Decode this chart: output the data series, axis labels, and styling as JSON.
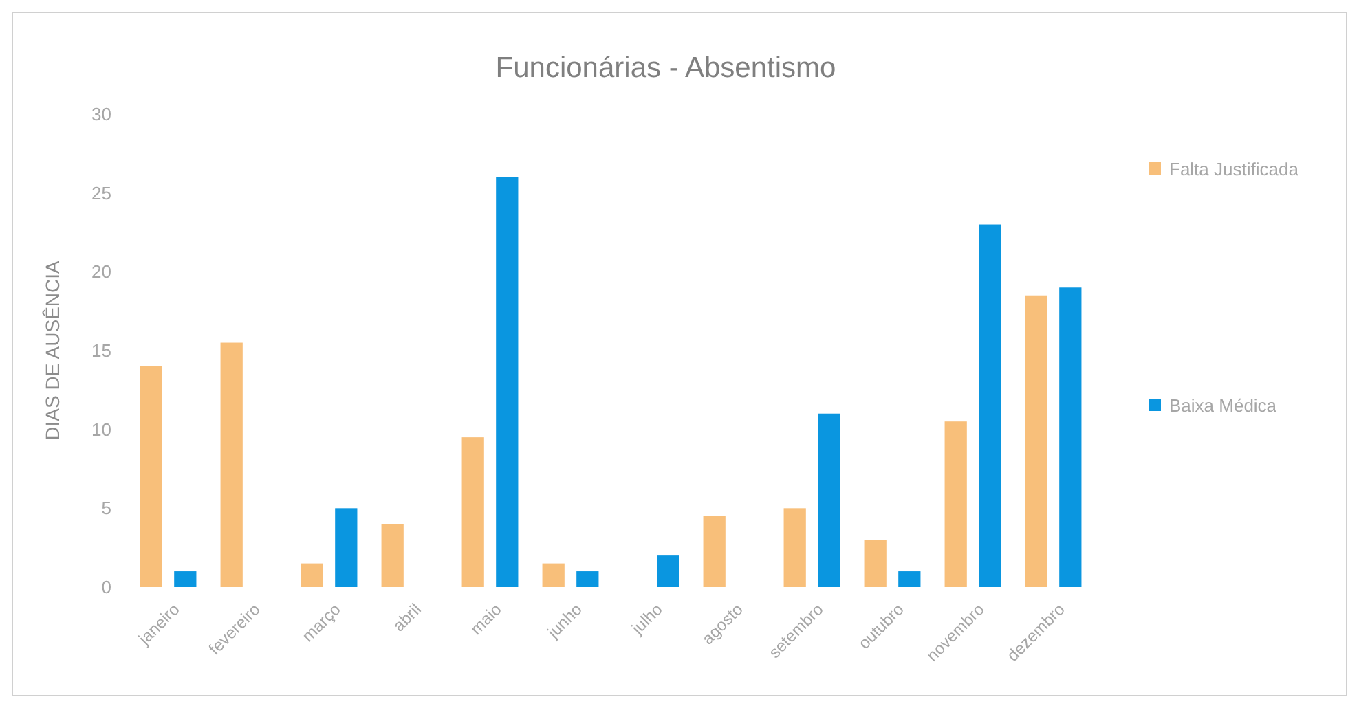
{
  "chart_data": {
    "type": "bar",
    "title": "Funcionárias - Absentismo",
    "ylabel": "DIAS DE AUSÊNCIA",
    "categories": [
      "janeiro",
      "fevereiro",
      "março",
      "abril",
      "maio",
      "junho",
      "julho",
      "agosto",
      "setembro",
      "outubro",
      "novembro",
      "dezembro"
    ],
    "series": [
      {
        "name": "Falta Justificada",
        "color": "#f8bf7a",
        "values": [
          14,
          15.5,
          1.5,
          4,
          9.5,
          1.5,
          null,
          4.5,
          5,
          3,
          10.5,
          18.5
        ]
      },
      {
        "name": "Baixa Médica",
        "color": "#0a96e0",
        "values": [
          1,
          null,
          5,
          null,
          26,
          1,
          2,
          null,
          11,
          1,
          23,
          19
        ]
      }
    ],
    "ylim": [
      0,
      30
    ],
    "yticks": [
      0,
      5,
      10,
      15,
      20,
      25,
      30
    ],
    "grid": false,
    "legend": "right"
  }
}
